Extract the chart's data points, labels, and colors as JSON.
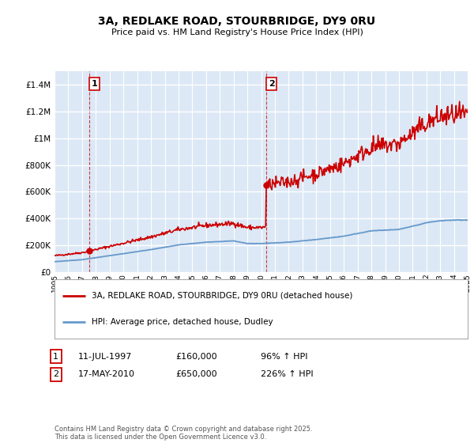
{
  "title": "3A, REDLAKE ROAD, STOURBRIDGE, DY9 0RU",
  "subtitle": "Price paid vs. HM Land Registry's House Price Index (HPI)",
  "legend_line1": "3A, REDLAKE ROAD, STOURBRIDGE, DY9 0RU (detached house)",
  "legend_line2": "HPI: Average price, detached house, Dudley",
  "annotation1_label": "1",
  "annotation1_date": "11-JUL-1997",
  "annotation1_price": "£160,000",
  "annotation1_hpi": "96% ↑ HPI",
  "annotation2_label": "2",
  "annotation2_date": "17-MAY-2010",
  "annotation2_price": "£650,000",
  "annotation2_hpi": "226% ↑ HPI",
  "footer": "Contains HM Land Registry data © Crown copyright and database right 2025.\nThis data is licensed under the Open Government Licence v3.0.",
  "red_color": "#cc0000",
  "blue_color": "#6699cc",
  "background_color": "#dce8f5",
  "grid_color": "#ffffff",
  "ylim": [
    0,
    1500000
  ],
  "yticks": [
    0,
    200000,
    400000,
    600000,
    800000,
    1000000,
    1200000,
    1400000
  ],
  "sale1_year": 1997.53,
  "sale1_price": 160000,
  "sale2_year": 2010.37,
  "sale2_price": 650000,
  "xlim_start": 1995,
  "xlim_end": 2025
}
